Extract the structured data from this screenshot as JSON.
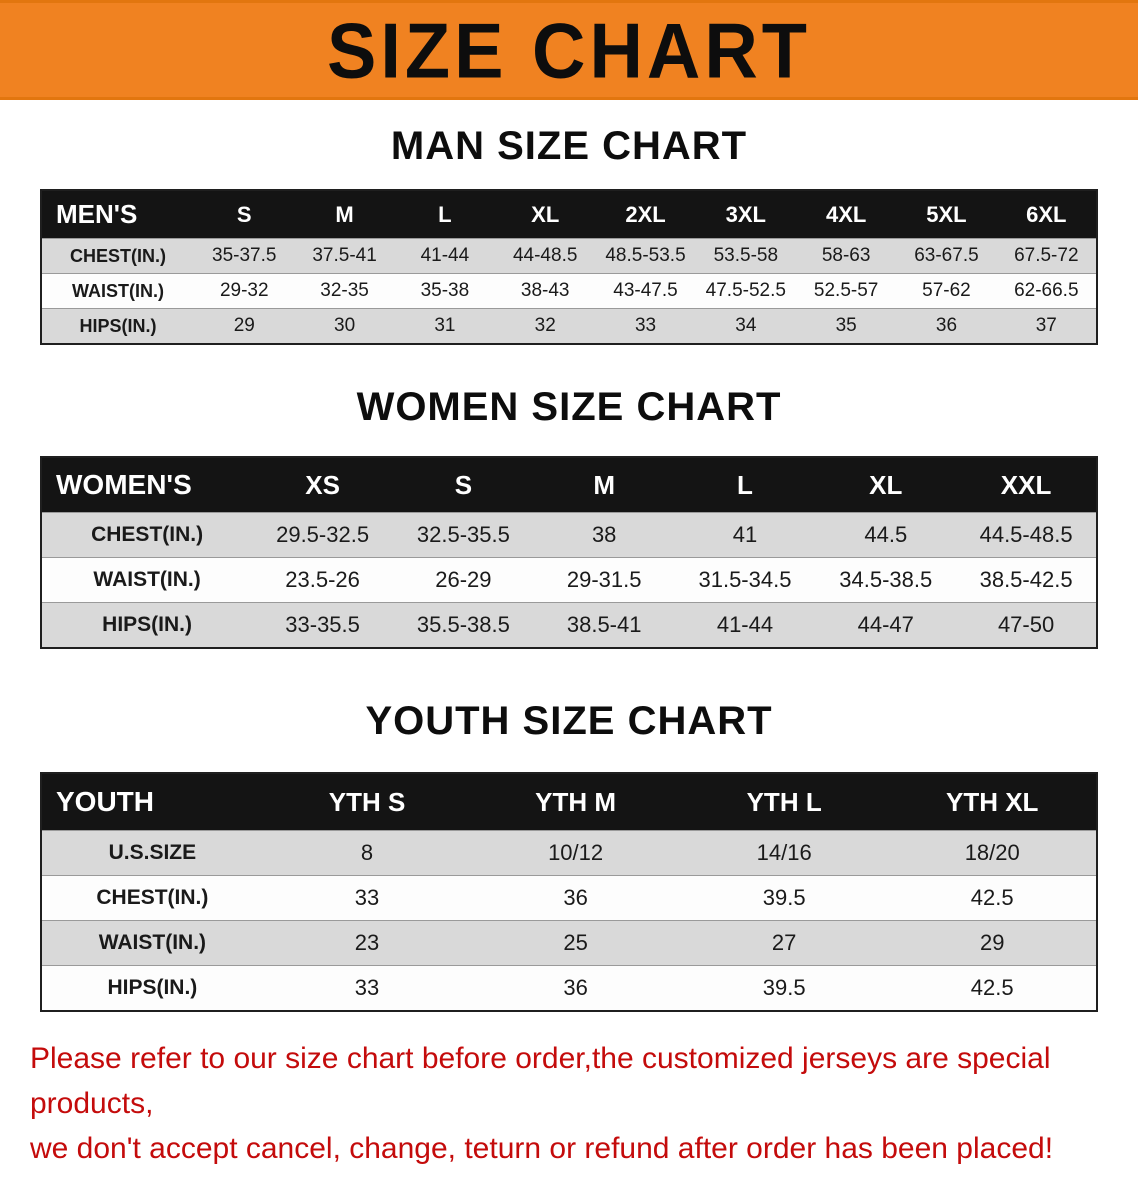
{
  "banner": {
    "title": "SIZE CHART",
    "bg_color": "#F08221",
    "text_color": "#0D0D0D"
  },
  "sections": {
    "men": {
      "heading": "MAN SIZE CHART",
      "table": {
        "header": [
          "MEN'S",
          "S",
          "M",
          "L",
          "XL",
          "2XL",
          "3XL",
          "4XL",
          "5XL",
          "6XL"
        ],
        "rows": [
          [
            "CHEST(IN.)",
            "35-37.5",
            "37.5-41",
            "41-44",
            "44-48.5",
            "48.5-53.5",
            "53.5-58",
            "58-63",
            "63-67.5",
            "67.5-72"
          ],
          [
            "WAIST(IN.)",
            "29-32",
            "32-35",
            "35-38",
            "38-43",
            "43-47.5",
            "47.5-52.5",
            "52.5-57",
            "57-62",
            "62-66.5"
          ],
          [
            "HIPS(IN.)",
            "29",
            "30",
            "31",
            "32",
            "33",
            "34",
            "35",
            "36",
            "37"
          ]
        ]
      }
    },
    "women": {
      "heading": "WOMEN SIZE CHART",
      "table": {
        "header": [
          "WOMEN'S",
          "XS",
          "S",
          "M",
          "L",
          "XL",
          "XXL"
        ],
        "rows": [
          [
            "CHEST(IN.)",
            "29.5-32.5",
            "32.5-35.5",
            "38",
            "41",
            "44.5",
            "44.5-48.5"
          ],
          [
            "WAIST(IN.)",
            "23.5-26",
            "26-29",
            "29-31.5",
            "31.5-34.5",
            "34.5-38.5",
            "38.5-42.5"
          ],
          [
            "HIPS(IN.)",
            "33-35.5",
            "35.5-38.5",
            "38.5-41",
            "41-44",
            "44-47",
            "47-50"
          ]
        ]
      }
    },
    "youth": {
      "heading": "YOUTH SIZE CHART",
      "table": {
        "header": [
          "YOUTH",
          "YTH S",
          "YTH M",
          "YTH L",
          "YTH XL"
        ],
        "rows": [
          [
            "U.S.SIZE",
            "8",
            "10/12",
            "14/16",
            "18/20"
          ],
          [
            "CHEST(IN.)",
            "33",
            "36",
            "39.5",
            "42.5"
          ],
          [
            "WAIST(IN.)",
            "23",
            "25",
            "27",
            "29"
          ],
          [
            "HIPS(IN.)",
            "33",
            "36",
            "39.5",
            "42.5"
          ]
        ]
      }
    }
  },
  "disclaimer": {
    "line1": "Please refer to our size chart before order,the customized jerseys are special products,",
    "line2": "we don't accept cancel, change, teturn or refund after order has been placed!",
    "color": "#C40B0B"
  }
}
